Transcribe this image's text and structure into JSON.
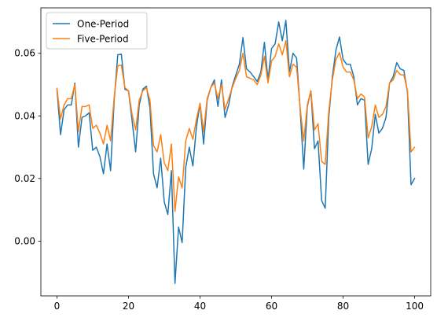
{
  "chart_data": {
    "type": "line",
    "title": "",
    "xlabel": "",
    "ylabel": "",
    "xlim": [
      -4.5,
      104.5
    ],
    "ylim": [
      -0.0175,
      0.0745
    ],
    "x_ticks": [
      0,
      20,
      40,
      60,
      80,
      100
    ],
    "x_tick_labels": [
      "0",
      "20",
      "40",
      "60",
      "80",
      "100"
    ],
    "y_ticks": [
      0.0,
      0.02,
      0.04,
      0.06
    ],
    "y_tick_labels": [
      "0.00",
      "0.02",
      "0.04",
      "0.06"
    ],
    "grid": false,
    "legend_position": "top-left",
    "x": [
      0,
      1,
      2,
      3,
      4,
      5,
      6,
      7,
      8,
      9,
      10,
      11,
      12,
      13,
      14,
      15,
      16,
      17,
      18,
      19,
      20,
      21,
      22,
      23,
      24,
      25,
      26,
      27,
      28,
      29,
      30,
      31,
      32,
      33,
      34,
      35,
      36,
      37,
      38,
      39,
      40,
      41,
      42,
      43,
      44,
      45,
      46,
      47,
      48,
      49,
      50,
      51,
      52,
      53,
      54,
      55,
      56,
      57,
      58,
      59,
      60,
      61,
      62,
      63,
      64,
      65,
      66,
      67,
      68,
      69,
      70,
      71,
      72,
      73,
      74,
      75,
      76,
      77,
      78,
      79,
      80,
      81,
      82,
      83,
      84,
      85,
      86,
      87,
      88,
      89,
      90,
      91,
      92,
      93,
      94,
      95,
      96,
      97,
      98,
      99,
      100
    ],
    "series": [
      {
        "name": "One-Period",
        "color": "#1f77b4",
        "values": [
          0.0485,
          0.034,
          0.042,
          0.0435,
          0.0435,
          0.0505,
          0.03,
          0.0395,
          0.04,
          0.041,
          0.029,
          0.03,
          0.027,
          0.0215,
          0.031,
          0.0225,
          0.045,
          0.0595,
          0.0597,
          0.0485,
          0.048,
          0.0385,
          0.0285,
          0.0435,
          0.0485,
          0.0495,
          0.0425,
          0.0215,
          0.017,
          0.0265,
          0.0125,
          0.0085,
          0.0225,
          -0.0135,
          0.0045,
          -0.0005,
          0.0235,
          0.03,
          0.024,
          0.0365,
          0.044,
          0.031,
          0.045,
          0.049,
          0.0515,
          0.043,
          0.0515,
          0.0395,
          0.0435,
          0.0495,
          0.053,
          0.0565,
          0.065,
          0.055,
          0.054,
          0.0525,
          0.051,
          0.054,
          0.0635,
          0.0515,
          0.0615,
          0.063,
          0.07,
          0.064,
          0.0705,
          0.054,
          0.06,
          0.0585,
          0.042,
          0.023,
          0.043,
          0.048,
          0.0295,
          0.032,
          0.013,
          0.0105,
          0.0395,
          0.0525,
          0.061,
          0.0652,
          0.058,
          0.0565,
          0.0565,
          0.0525,
          0.0435,
          0.0455,
          0.045,
          0.0245,
          0.0295,
          0.0405,
          0.0345,
          0.036,
          0.0395,
          0.0505,
          0.0525,
          0.057,
          0.055,
          0.0545,
          0.0475,
          0.018,
          0.02
        ]
      },
      {
        "name": "Five-Period",
        "color": "#ff7f0e",
        "values": [
          0.0488,
          0.039,
          0.0435,
          0.0455,
          0.0455,
          0.05,
          0.035,
          0.043,
          0.043,
          0.0435,
          0.036,
          0.037,
          0.0345,
          0.031,
          0.037,
          0.032,
          0.046,
          0.056,
          0.0562,
          0.049,
          0.048,
          0.0405,
          0.0355,
          0.045,
          0.048,
          0.049,
          0.045,
          0.0305,
          0.0285,
          0.034,
          0.025,
          0.0225,
          0.031,
          0.0095,
          0.0205,
          0.017,
          0.032,
          0.036,
          0.0325,
          0.039,
          0.044,
          0.035,
          0.0455,
          0.049,
          0.0505,
          0.0455,
          0.05,
          0.042,
          0.0455,
          0.049,
          0.052,
          0.0545,
          0.06,
          0.0525,
          0.052,
          0.0515,
          0.05,
          0.053,
          0.059,
          0.0505,
          0.0575,
          0.059,
          0.063,
          0.0595,
          0.064,
          0.0525,
          0.0565,
          0.0555,
          0.0425,
          0.032,
          0.0435,
          0.048,
          0.0355,
          0.0375,
          0.0255,
          0.0245,
          0.0415,
          0.0515,
          0.058,
          0.0602,
          0.0555,
          0.054,
          0.054,
          0.0515,
          0.0455,
          0.047,
          0.046,
          0.033,
          0.0365,
          0.0435,
          0.0395,
          0.0405,
          0.043,
          0.0505,
          0.0515,
          0.0545,
          0.0532,
          0.053,
          0.048,
          0.0285,
          0.03
        ]
      }
    ]
  }
}
